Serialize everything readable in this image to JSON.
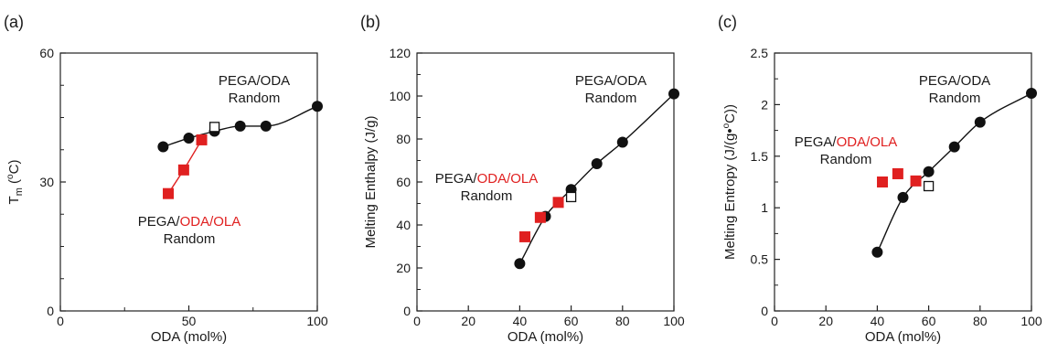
{
  "colors": {
    "black_series": "#111111",
    "red_series": "#e02020",
    "axis": "#222222"
  },
  "chart_data": [
    {
      "panel_label": "(a)",
      "type": "scatter",
      "xlabel": "ODA (mol%)",
      "ylabel_parts": [
        "T",
        "m",
        " (",
        "o",
        "C)"
      ],
      "xlim": [
        0,
        100
      ],
      "ylim": [
        0,
        60
      ],
      "xticks": [
        0,
        50,
        100
      ],
      "yticks": [
        0,
        30,
        60
      ],
      "grid": false,
      "series": [
        {
          "marker": "filled-circle",
          "color": "#111111",
          "curve": "smooth",
          "x": [
            40,
            50,
            60,
            70,
            80,
            100
          ],
          "y": [
            38.2,
            40.2,
            41.8,
            43,
            43,
            47.6
          ]
        },
        {
          "marker": "filled-square",
          "color": "#e02020",
          "curve": "polyline",
          "x": [
            42,
            48,
            55
          ],
          "y": [
            27.3,
            32.8,
            39.8
          ]
        },
        {
          "marker": "open-square",
          "color": "#111111",
          "curve": "none",
          "x": [
            60
          ],
          "y": [
            42.8
          ]
        }
      ],
      "annotations": [
        {
          "id": "black",
          "lines": [
            [
              {
                "t": "PEGA/ODA",
                "c": "k"
              }
            ],
            [
              {
                "t": "Random",
                "c": "k"
              }
            ]
          ]
        },
        {
          "id": "red",
          "lines": [
            [
              {
                "t": "PEGA/",
                "c": "k"
              },
              {
                "t": "ODA/OLA",
                "c": "r"
              }
            ],
            [
              {
                "t": "Random",
                "c": "k"
              }
            ]
          ]
        }
      ]
    },
    {
      "panel_label": "(b)",
      "type": "scatter",
      "xlabel": "ODA (mol%)",
      "ylabel": "Melting Enthalpy (J/g)",
      "xlim": [
        0,
        100
      ],
      "ylim": [
        0,
        120
      ],
      "xticks": [
        0,
        20,
        40,
        60,
        80,
        100
      ],
      "yticks": [
        0,
        20,
        40,
        60,
        80,
        100,
        120
      ],
      "grid": false,
      "series": [
        {
          "marker": "filled-circle",
          "color": "#111111",
          "curve": "smooth",
          "x": [
            40,
            50,
            60,
            70,
            80,
            100
          ],
          "y": [
            22,
            44,
            56.5,
            68.5,
            78.5,
            101
          ]
        },
        {
          "marker": "filled-square",
          "color": "#e02020",
          "curve": "none",
          "x": [
            42,
            48,
            55
          ],
          "y": [
            34.5,
            43.5,
            50.5
          ]
        },
        {
          "marker": "open-square",
          "color": "#111111",
          "curve": "none",
          "x": [
            60
          ],
          "y": [
            53
          ]
        }
      ],
      "annotations": [
        {
          "id": "black",
          "lines": [
            [
              {
                "t": "PEGA/ODA",
                "c": "k"
              }
            ],
            [
              {
                "t": "Random",
                "c": "k"
              }
            ]
          ]
        },
        {
          "id": "red",
          "lines": [
            [
              {
                "t": "PEGA/",
                "c": "k"
              },
              {
                "t": "ODA/OLA",
                "c": "r"
              }
            ],
            [
              {
                "t": "Random",
                "c": "k"
              }
            ]
          ]
        }
      ]
    },
    {
      "panel_label": "(c)",
      "type": "scatter",
      "xlabel": "ODA (mol%)",
      "ylabel_parts": [
        "Melting Entropy (J/(g•",
        "o",
        "C))"
      ],
      "xlim": [
        0,
        100
      ],
      "ylim": [
        0,
        2.5
      ],
      "xticks": [
        0,
        20,
        40,
        60,
        80,
        100
      ],
      "yticks": [
        0,
        0.5,
        1,
        1.5,
        2,
        2.5
      ],
      "grid": false,
      "series": [
        {
          "marker": "filled-circle",
          "color": "#111111",
          "curve": "smooth",
          "x": [
            40,
            50,
            60,
            70,
            80,
            100
          ],
          "y": [
            0.57,
            1.1,
            1.35,
            1.59,
            1.83,
            2.11
          ]
        },
        {
          "marker": "filled-square",
          "color": "#e02020",
          "curve": "none",
          "x": [
            42,
            48,
            55
          ],
          "y": [
            1.25,
            1.33,
            1.26
          ]
        },
        {
          "marker": "open-square",
          "color": "#111111",
          "curve": "none",
          "x": [
            60
          ],
          "y": [
            1.21
          ]
        }
      ],
      "annotations": [
        {
          "id": "black",
          "lines": [
            [
              {
                "t": "PEGA/ODA",
                "c": "k"
              }
            ],
            [
              {
                "t": "Random",
                "c": "k"
              }
            ]
          ]
        },
        {
          "id": "red",
          "lines": [
            [
              {
                "t": "PEGA/",
                "c": "k"
              },
              {
                "t": "ODA/OLA",
                "c": "r"
              }
            ],
            [
              {
                "t": "Random",
                "c": "k"
              }
            ]
          ]
        }
      ]
    }
  ]
}
